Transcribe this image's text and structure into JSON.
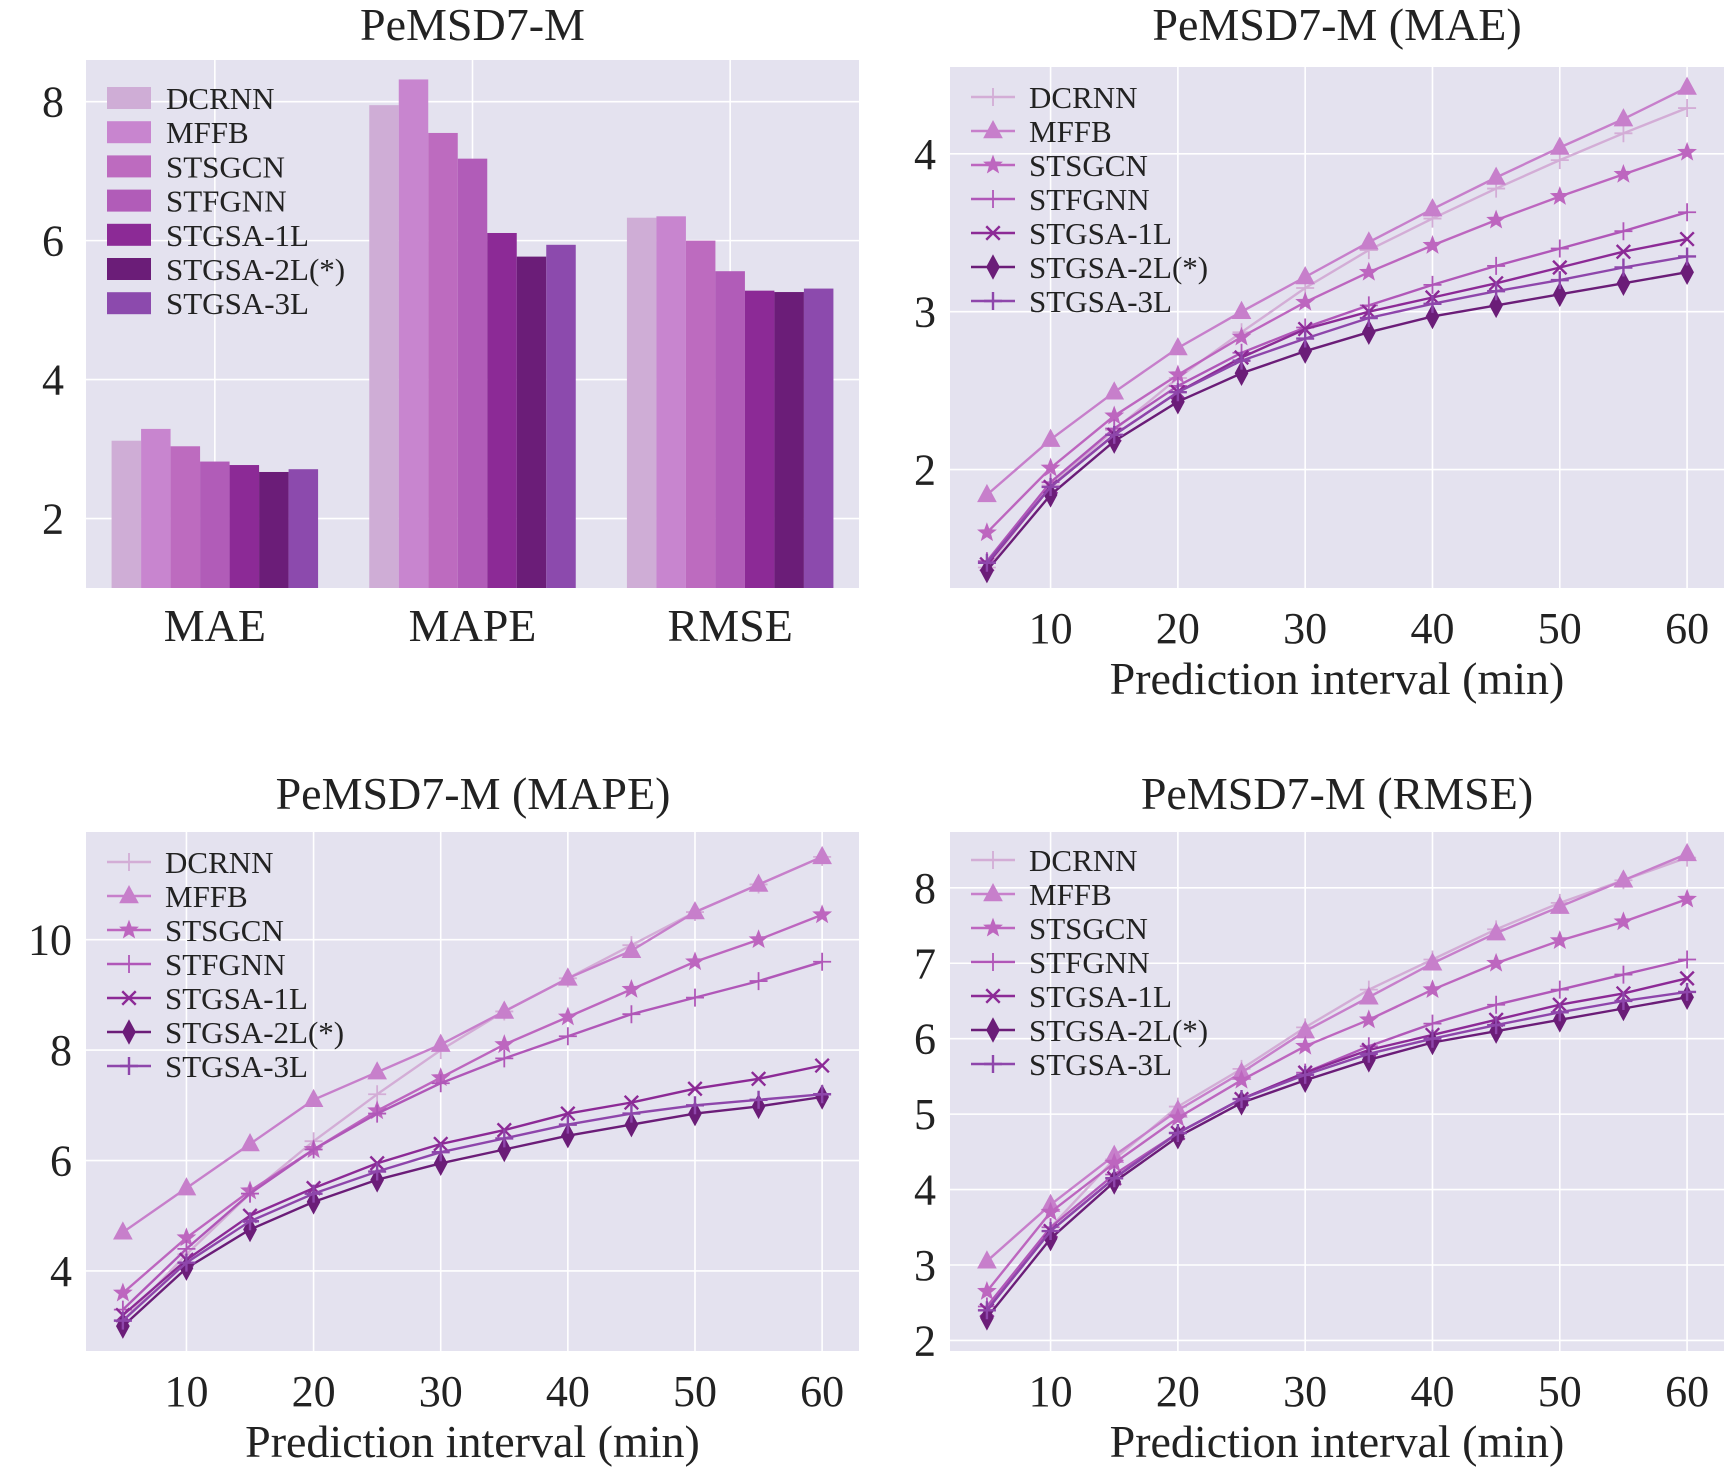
{
  "chart_data": [
    {
      "type": "bar",
      "title": "PeMSD7-M",
      "xlabel": "",
      "ylabel": "",
      "categories": [
        "MAE",
        "MAPE",
        "RMSE"
      ],
      "ylim": [
        1.0,
        8.6
      ],
      "yticks": [
        2,
        4,
        6,
        8
      ],
      "legend": "top-left",
      "grid": true,
      "series": [
        {
          "name": "DCRNN",
          "color": "#cfadd6",
          "values": [
            3.12,
            7.95,
            6.33
          ]
        },
        {
          "name": "MFFB",
          "color": "#c885cf",
          "values": [
            3.29,
            8.32,
            6.35
          ]
        },
        {
          "name": "STSGCN",
          "color": "#bd6bbf",
          "values": [
            3.04,
            7.55,
            6.0
          ]
        },
        {
          "name": "STFGNN",
          "color": "#b15cb8",
          "values": [
            2.82,
            7.18,
            5.56
          ]
        },
        {
          "name": "STGSA-1L",
          "color": "#8c2a96",
          "values": [
            2.77,
            6.11,
            5.28
          ]
        },
        {
          "name": "STGSA-2L(*)",
          "color": "#6b1d78",
          "values": [
            2.67,
            5.77,
            5.26
          ]
        },
        {
          "name": "STGSA-3L",
          "color": "#8c4aad",
          "values": [
            2.71,
            5.94,
            5.31
          ]
        }
      ]
    },
    {
      "type": "line",
      "title": "PeMSD7-M (MAE)",
      "xlabel": "Prediction interval (min)",
      "ylabel": "",
      "x": [
        5,
        10,
        15,
        20,
        25,
        30,
        35,
        40,
        45,
        50,
        55,
        60
      ],
      "xlim": [
        2.1,
        62.9
      ],
      "ylim": [
        1.25,
        4.55
      ],
      "xticks": [
        10,
        20,
        30,
        40,
        50,
        60
      ],
      "yticks": [
        2,
        3,
        4
      ],
      "legend": "top-left",
      "grid": true,
      "series": [
        {
          "name": "DCRNN",
          "color": "#d3add6",
          "marker": "plus",
          "values": [
            1.38,
            1.9,
            2.25,
            2.58,
            2.87,
            3.15,
            3.39,
            3.59,
            3.78,
            3.96,
            4.13,
            4.29
          ]
        },
        {
          "name": "MFFB",
          "color": "#c77fcb",
          "marker": "triangle",
          "values": [
            1.84,
            2.19,
            2.49,
            2.77,
            3.0,
            3.22,
            3.44,
            3.65,
            3.85,
            4.04,
            4.22,
            4.42
          ]
        },
        {
          "name": "STSGCN",
          "color": "#bd66bf",
          "marker": "star",
          "values": [
            1.6,
            2.01,
            2.34,
            2.6,
            2.84,
            3.06,
            3.25,
            3.42,
            3.58,
            3.73,
            3.87,
            4.01
          ]
        },
        {
          "name": "STFGNN",
          "color": "#b057b8",
          "marker": "plus",
          "values": [
            1.42,
            1.92,
            2.26,
            2.53,
            2.74,
            2.9,
            3.04,
            3.17,
            3.29,
            3.4,
            3.51,
            3.63
          ]
        },
        {
          "name": "STGSA-1L",
          "color": "#8c2a96",
          "marker": "x",
          "values": [
            1.4,
            1.89,
            2.22,
            2.49,
            2.71,
            2.89,
            3.0,
            3.09,
            3.18,
            3.28,
            3.38,
            3.46
          ]
        },
        {
          "name": "STGSA-2L(*)",
          "color": "#6b1d78",
          "marker": "diamond",
          "values": [
            1.36,
            1.84,
            2.18,
            2.43,
            2.61,
            2.75,
            2.87,
            2.97,
            3.04,
            3.11,
            3.18,
            3.25
          ]
        },
        {
          "name": "STGSA-3L",
          "color": "#8e46ab",
          "marker": "tri",
          "values": [
            1.41,
            1.89,
            2.22,
            2.49,
            2.69,
            2.83,
            2.96,
            3.05,
            3.13,
            3.2,
            3.28,
            3.35
          ]
        }
      ]
    },
    {
      "type": "line",
      "title": "PeMSD7-M (MAPE)",
      "xlabel": "Prediction interval (min)",
      "ylabel": "",
      "x": [
        5,
        10,
        15,
        20,
        25,
        30,
        35,
        40,
        45,
        50,
        55,
        60
      ],
      "xlim": [
        2.1,
        62.9
      ],
      "ylim": [
        2.55,
        11.95
      ],
      "xticks": [
        10,
        20,
        30,
        40,
        50,
        60
      ],
      "yticks": [
        4,
        6,
        8,
        10
      ],
      "legend": "top-left",
      "grid": true,
      "series": [
        {
          "name": "DCRNN",
          "color": "#d3add6",
          "marker": "plus",
          "values": [
            3.1,
            4.3,
            5.4,
            6.35,
            7.2,
            8.0,
            8.7,
            9.3,
            9.9,
            10.5,
            11.0,
            11.5
          ]
        },
        {
          "name": "MFFB",
          "color": "#c77fcb",
          "marker": "triangle",
          "values": [
            4.7,
            5.5,
            6.3,
            7.1,
            7.6,
            8.1,
            8.7,
            9.3,
            9.8,
            10.5,
            11.0,
            11.5
          ]
        },
        {
          "name": "STSGCN",
          "color": "#bd66bf",
          "marker": "star",
          "values": [
            3.6,
            4.6,
            5.45,
            6.2,
            6.9,
            7.5,
            8.1,
            8.6,
            9.1,
            9.6,
            10.0,
            10.45
          ]
        },
        {
          "name": "STFGNN",
          "color": "#b057b8",
          "marker": "plus",
          "values": [
            3.3,
            4.4,
            5.4,
            6.2,
            6.85,
            7.4,
            7.85,
            8.25,
            8.65,
            8.95,
            9.25,
            9.6
          ]
        },
        {
          "name": "STGSA-1L",
          "color": "#8c2a96",
          "marker": "x",
          "values": [
            3.2,
            4.2,
            5.0,
            5.5,
            5.95,
            6.3,
            6.55,
            6.85,
            7.05,
            7.3,
            7.48,
            7.72
          ]
        },
        {
          "name": "STGSA-2L(*)",
          "color": "#6b1d78",
          "marker": "diamond",
          "values": [
            3.0,
            4.05,
            4.75,
            5.25,
            5.65,
            5.95,
            6.2,
            6.45,
            6.65,
            6.85,
            6.98,
            7.15
          ]
        },
        {
          "name": "STGSA-3L",
          "color": "#8e46ab",
          "marker": "tri",
          "values": [
            3.1,
            4.15,
            4.9,
            5.4,
            5.8,
            6.15,
            6.4,
            6.65,
            6.85,
            7.0,
            7.1,
            7.2
          ]
        }
      ]
    },
    {
      "type": "line",
      "title": "PeMSD7-M (RMSE)",
      "xlabel": "Prediction interval (min)",
      "ylabel": "",
      "x": [
        5,
        10,
        15,
        20,
        25,
        30,
        35,
        40,
        45,
        50,
        55,
        60
      ],
      "xlim": [
        2.1,
        62.9
      ],
      "ylim": [
        1.86,
        8.74
      ],
      "xticks": [
        10,
        20,
        30,
        40,
        50,
        60
      ],
      "yticks": [
        2,
        3,
        4,
        5,
        6,
        7,
        8
      ],
      "legend": "top-left",
      "grid": true,
      "series": [
        {
          "name": "DCRNN",
          "color": "#d3add6",
          "marker": "plus",
          "values": [
            2.4,
            3.5,
            4.4,
            5.1,
            5.6,
            6.15,
            6.65,
            7.05,
            7.45,
            7.8,
            8.1,
            8.4
          ]
        },
        {
          "name": "MFFB",
          "color": "#c77fcb",
          "marker": "triangle",
          "values": [
            3.05,
            3.8,
            4.45,
            5.05,
            5.55,
            6.1,
            6.55,
            7.0,
            7.4,
            7.75,
            8.1,
            8.45
          ]
        },
        {
          "name": "STSGCN",
          "color": "#bd66bf",
          "marker": "star",
          "values": [
            2.65,
            3.7,
            4.35,
            4.95,
            5.45,
            5.9,
            6.25,
            6.65,
            7.0,
            7.3,
            7.55,
            7.85
          ]
        },
        {
          "name": "STFGNN",
          "color": "#b057b8",
          "marker": "plus",
          "values": [
            2.45,
            3.5,
            4.2,
            4.75,
            5.2,
            5.55,
            5.9,
            6.2,
            6.45,
            6.65,
            6.85,
            7.05
          ]
        },
        {
          "name": "STGSA-1L",
          "color": "#8c2a96",
          "marker": "x",
          "values": [
            2.4,
            3.45,
            4.15,
            4.75,
            5.2,
            5.55,
            5.85,
            6.05,
            6.25,
            6.45,
            6.6,
            6.8
          ]
        },
        {
          "name": "STGSA-2L(*)",
          "color": "#6b1d78",
          "marker": "diamond",
          "values": [
            2.3,
            3.35,
            4.1,
            4.7,
            5.15,
            5.45,
            5.72,
            5.95,
            6.1,
            6.25,
            6.4,
            6.55
          ]
        },
        {
          "name": "STGSA-3L",
          "color": "#8e46ab",
          "marker": "tri",
          "values": [
            2.4,
            3.45,
            4.15,
            4.75,
            5.2,
            5.52,
            5.8,
            6.0,
            6.18,
            6.35,
            6.5,
            6.62
          ]
        }
      ]
    }
  ]
}
